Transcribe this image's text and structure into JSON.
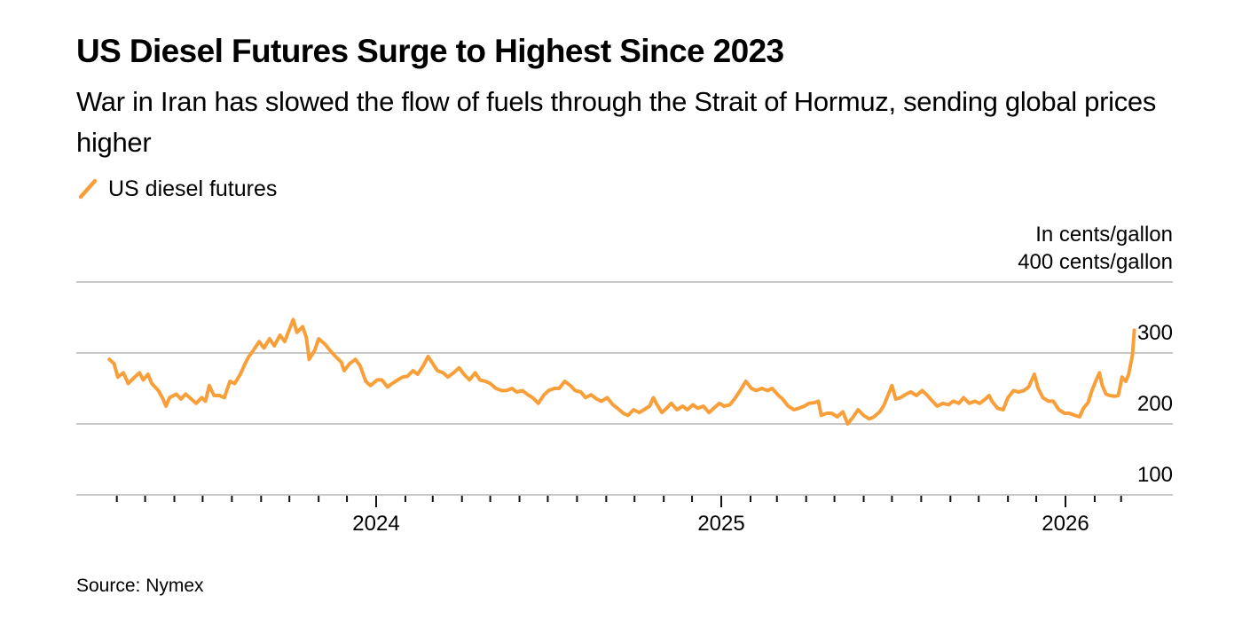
{
  "header": {
    "title": "US Diesel Futures Surge to Highest Since 2023",
    "subtitle": "War in Iran has slowed the flow of fuels through the Strait of Hormuz, sending global prices higher"
  },
  "legend": {
    "items": [
      {
        "label": "US diesel futures",
        "color": "#F99F3A",
        "icon": "diagonal-line-icon"
      }
    ]
  },
  "unit_label_line1": "In cents/gallon",
  "unit_label_line2": "400 cents/gallon",
  "footer": {
    "source": "Source: Nymex"
  },
  "chart_data": {
    "type": "line",
    "title": "US Diesel Futures Surge to Highest Since 2023",
    "subtitle": "War in Iran has slowed the flow of fuels through the Strait of Hormuz, sending global prices higher",
    "xlabel": "",
    "ylabel": "In cents/gallon",
    "ylim": [
      100,
      400
    ],
    "xlim": [
      "2023-03-01",
      "2026-03-31"
    ],
    "grid": true,
    "legend_position": "top-left",
    "y_ticks": [
      {
        "value": 400,
        "label": "400 cents/gallon"
      },
      {
        "value": 300,
        "label": "300"
      },
      {
        "value": 200,
        "label": "200"
      },
      {
        "value": 100,
        "label": "100"
      }
    ],
    "x_ticks": [
      {
        "date": "2024-01-01",
        "label": "2024"
      },
      {
        "date": "2025-01-01",
        "label": "2025"
      },
      {
        "date": "2026-01-01",
        "label": "2026"
      }
    ],
    "x_minor_ticks": "monthly",
    "series": [
      {
        "name": "US diesel futures",
        "color": "#F99F3A",
        "points": [
          [
            "2023-03-24",
            291
          ],
          [
            "2023-03-29",
            285
          ],
          [
            "2023-04-02",
            266
          ],
          [
            "2023-04-08",
            272
          ],
          [
            "2023-04-13",
            257
          ],
          [
            "2023-04-20",
            266
          ],
          [
            "2023-04-25",
            272
          ],
          [
            "2023-04-29",
            262
          ],
          [
            "2023-05-04",
            270
          ],
          [
            "2023-05-08",
            257
          ],
          [
            "2023-05-15",
            247
          ],
          [
            "2023-05-20",
            235
          ],
          [
            "2023-05-23",
            225
          ],
          [
            "2023-05-27",
            237
          ],
          [
            "2023-06-03",
            242
          ],
          [
            "2023-06-08",
            235
          ],
          [
            "2023-06-13",
            242
          ],
          [
            "2023-06-19",
            235
          ],
          [
            "2023-06-24",
            229
          ],
          [
            "2023-06-30",
            237
          ],
          [
            "2023-07-04",
            232
          ],
          [
            "2023-07-08",
            254
          ],
          [
            "2023-07-13",
            240
          ],
          [
            "2023-07-19",
            240
          ],
          [
            "2023-07-24",
            237
          ],
          [
            "2023-07-30",
            260
          ],
          [
            "2023-08-04",
            257
          ],
          [
            "2023-08-10",
            270
          ],
          [
            "2023-08-15",
            285
          ],
          [
            "2023-08-19",
            295
          ],
          [
            "2023-08-24",
            304
          ],
          [
            "2023-08-30",
            316
          ],
          [
            "2023-09-04",
            307
          ],
          [
            "2023-09-10",
            320
          ],
          [
            "2023-09-15",
            310
          ],
          [
            "2023-09-21",
            325
          ],
          [
            "2023-09-26",
            316
          ],
          [
            "2023-10-02",
            337
          ],
          [
            "2023-10-05",
            347
          ],
          [
            "2023-10-09",
            329
          ],
          [
            "2023-10-15",
            337
          ],
          [
            "2023-10-19",
            322
          ],
          [
            "2023-10-22",
            291
          ],
          [
            "2023-10-28",
            304
          ],
          [
            "2023-11-01",
            320
          ],
          [
            "2023-11-08",
            312
          ],
          [
            "2023-11-14",
            302
          ],
          [
            "2023-11-19",
            295
          ],
          [
            "2023-11-25",
            287
          ],
          [
            "2023-11-28",
            275
          ],
          [
            "2023-12-04",
            285
          ],
          [
            "2023-12-10",
            291
          ],
          [
            "2023-12-15",
            282
          ],
          [
            "2023-12-21",
            260
          ],
          [
            "2023-12-26",
            254
          ],
          [
            "2024-01-02",
            262
          ],
          [
            "2024-01-07",
            262
          ],
          [
            "2024-01-13",
            252
          ],
          [
            "2024-01-18",
            257
          ],
          [
            "2024-01-24",
            262
          ],
          [
            "2024-01-29",
            266
          ],
          [
            "2024-02-03",
            267
          ],
          [
            "2024-02-09",
            275
          ],
          [
            "2024-02-14",
            270
          ],
          [
            "2024-02-20",
            282
          ],
          [
            "2024-02-25",
            295
          ],
          [
            "2024-02-29",
            287
          ],
          [
            "2024-03-06",
            275
          ],
          [
            "2024-03-12",
            272
          ],
          [
            "2024-03-17",
            266
          ],
          [
            "2024-03-23",
            272
          ],
          [
            "2024-03-29",
            279
          ],
          [
            "2024-04-03",
            270
          ],
          [
            "2024-04-09",
            262
          ],
          [
            "2024-04-15",
            272
          ],
          [
            "2024-04-20",
            262
          ],
          [
            "2024-04-26",
            260
          ],
          [
            "2024-05-01",
            257
          ],
          [
            "2024-05-07",
            250
          ],
          [
            "2024-05-13",
            247
          ],
          [
            "2024-05-18",
            247
          ],
          [
            "2024-05-24",
            250
          ],
          [
            "2024-05-29",
            245
          ],
          [
            "2024-06-04",
            247
          ],
          [
            "2024-06-10",
            241
          ],
          [
            "2024-06-15",
            237
          ],
          [
            "2024-06-21",
            229
          ],
          [
            "2024-06-27",
            241
          ],
          [
            "2024-07-02",
            247
          ],
          [
            "2024-07-08",
            250
          ],
          [
            "2024-07-13",
            250
          ],
          [
            "2024-07-19",
            260
          ],
          [
            "2024-07-25",
            254
          ],
          [
            "2024-07-30",
            247
          ],
          [
            "2024-08-05",
            245
          ],
          [
            "2024-08-10",
            237
          ],
          [
            "2024-08-16",
            241
          ],
          [
            "2024-08-22",
            235
          ],
          [
            "2024-08-27",
            232
          ],
          [
            "2024-09-02",
            237
          ],
          [
            "2024-09-08",
            227
          ],
          [
            "2024-09-13",
            222
          ],
          [
            "2024-09-19",
            215
          ],
          [
            "2024-09-24",
            212
          ],
          [
            "2024-09-30",
            220
          ],
          [
            "2024-10-06",
            216
          ],
          [
            "2024-10-11",
            220
          ],
          [
            "2024-10-17",
            225
          ],
          [
            "2024-10-21",
            237
          ],
          [
            "2024-10-24",
            229
          ],
          [
            "2024-10-30",
            216
          ],
          [
            "2024-11-04",
            222
          ],
          [
            "2024-11-09",
            229
          ],
          [
            "2024-11-15",
            220
          ],
          [
            "2024-11-21",
            225
          ],
          [
            "2024-11-26",
            220
          ],
          [
            "2024-12-02",
            227
          ],
          [
            "2024-12-07",
            222
          ],
          [
            "2024-12-13",
            225
          ],
          [
            "2024-12-19",
            216
          ],
          [
            "2024-12-24",
            222
          ],
          [
            "2024-12-30",
            229
          ],
          [
            "2025-01-04",
            225
          ],
          [
            "2025-01-10",
            227
          ],
          [
            "2025-01-15",
            235
          ],
          [
            "2025-01-21",
            247
          ],
          [
            "2025-01-27",
            260
          ],
          [
            "2025-02-02",
            250
          ],
          [
            "2025-02-07",
            247
          ],
          [
            "2025-02-13",
            250
          ],
          [
            "2025-02-19",
            247
          ],
          [
            "2025-02-24",
            250
          ],
          [
            "2025-03-02",
            241
          ],
          [
            "2025-03-07",
            235
          ],
          [
            "2025-03-13",
            225
          ],
          [
            "2025-03-19",
            220
          ],
          [
            "2025-03-24",
            222
          ],
          [
            "2025-03-30",
            225
          ],
          [
            "2025-04-04",
            229
          ],
          [
            "2025-04-10",
            230
          ],
          [
            "2025-04-14",
            232
          ],
          [
            "2025-04-17",
            212
          ],
          [
            "2025-04-23",
            215
          ],
          [
            "2025-04-28",
            215
          ],
          [
            "2025-05-04",
            210
          ],
          [
            "2025-05-10",
            217
          ],
          [
            "2025-05-15",
            200
          ],
          [
            "2025-05-21",
            210
          ],
          [
            "2025-05-26",
            220
          ],
          [
            "2025-06-01",
            212
          ],
          [
            "2025-06-07",
            207
          ],
          [
            "2025-06-12",
            210
          ],
          [
            "2025-06-18",
            217
          ],
          [
            "2025-06-22",
            225
          ],
          [
            "2025-06-27",
            241
          ],
          [
            "2025-07-01",
            254
          ],
          [
            "2025-07-05",
            235
          ],
          [
            "2025-07-10",
            237
          ],
          [
            "2025-07-16",
            242
          ],
          [
            "2025-07-21",
            245
          ],
          [
            "2025-07-27",
            240
          ],
          [
            "2025-08-02",
            247
          ],
          [
            "2025-08-07",
            241
          ],
          [
            "2025-08-13",
            232
          ],
          [
            "2025-08-18",
            225
          ],
          [
            "2025-08-24",
            229
          ],
          [
            "2025-08-30",
            227
          ],
          [
            "2025-09-04",
            232
          ],
          [
            "2025-09-10",
            229
          ],
          [
            "2025-09-15",
            237
          ],
          [
            "2025-09-21",
            229
          ],
          [
            "2025-09-27",
            232
          ],
          [
            "2025-10-02",
            229
          ],
          [
            "2025-10-08",
            235
          ],
          [
            "2025-10-12",
            240
          ],
          [
            "2025-10-15",
            232
          ],
          [
            "2025-10-21",
            222
          ],
          [
            "2025-10-27",
            220
          ],
          [
            "2025-11-01",
            237
          ],
          [
            "2025-11-07",
            247
          ],
          [
            "2025-11-12",
            245
          ],
          [
            "2025-11-18",
            247
          ],
          [
            "2025-11-23",
            252
          ],
          [
            "2025-11-29",
            270
          ],
          [
            "2025-12-03",
            250
          ],
          [
            "2025-12-08",
            237
          ],
          [
            "2025-12-14",
            232
          ],
          [
            "2025-12-19",
            232
          ],
          [
            "2025-12-25",
            220
          ],
          [
            "2025-12-31",
            215
          ],
          [
            "2026-01-05",
            215
          ],
          [
            "2026-01-11",
            212
          ],
          [
            "2026-01-16",
            210
          ],
          [
            "2026-01-20",
            222
          ],
          [
            "2026-01-25",
            230
          ],
          [
            "2026-01-29",
            247
          ],
          [
            "2026-02-02",
            260
          ],
          [
            "2026-02-06",
            272
          ],
          [
            "2026-02-09",
            254
          ],
          [
            "2026-02-13",
            242
          ],
          [
            "2026-02-17",
            240
          ],
          [
            "2026-02-22",
            239
          ],
          [
            "2026-02-26",
            240
          ],
          [
            "2026-03-02",
            266
          ],
          [
            "2026-03-06",
            260
          ],
          [
            "2026-03-09",
            270
          ],
          [
            "2026-03-13",
            297
          ],
          [
            "2026-03-15",
            332
          ]
        ]
      }
    ]
  }
}
